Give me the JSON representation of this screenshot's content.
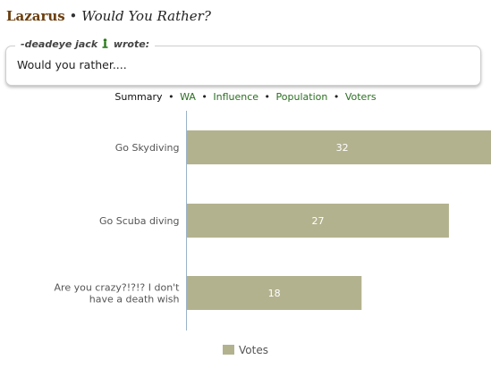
{
  "header": {
    "region": "Lazarus",
    "bullet": "•",
    "poll_title": "Would You Rather?"
  },
  "quote": {
    "author": "-deadeye jack",
    "wrote": "wrote:",
    "text": "Would you rather...."
  },
  "nav": {
    "current": "Summary",
    "separator": "•",
    "links": [
      "WA",
      "Influence",
      "Population",
      "Voters"
    ]
  },
  "colors": {
    "bar": "#b3b28f",
    "nav_link": "#2b6e21",
    "region": "#6b3e0e"
  },
  "chart_data": {
    "type": "bar",
    "orientation": "horizontal",
    "categories": [
      "Go Skydiving",
      "Go Scuba diving",
      "Are you crazy?!?!? I don't have a death wish"
    ],
    "category_lines": [
      [
        "Go Skydiving"
      ],
      [
        "Go Scuba diving"
      ],
      [
        "Are you crazy?!?!? I don't",
        "have a death wish"
      ]
    ],
    "series": [
      {
        "name": "Votes",
        "values": [
          32,
          27,
          18
        ]
      }
    ],
    "xlim": [
      0,
      35
    ],
    "legend": "bottom",
    "grid": false
  }
}
